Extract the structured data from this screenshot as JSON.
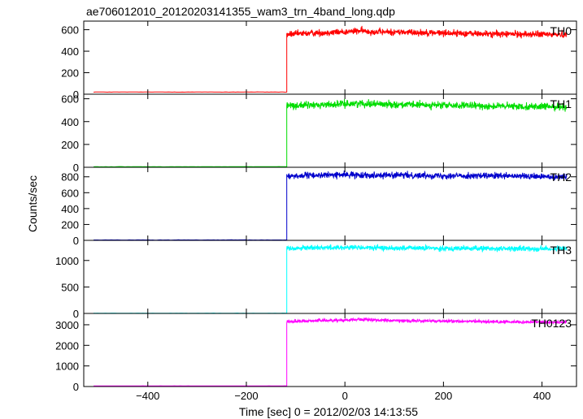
{
  "chart_data": {
    "type": "line",
    "title": "ae706012010_20120203141355_wam3_trn_4band_long.qdp",
    "xlabel": "Time [sec] 0 = 2012/02/03 14:13:55",
    "ylabel": "Counts/sec",
    "xlim": [
      -530,
      470
    ],
    "x_ticks": [
      -400,
      -200,
      0,
      200,
      400
    ],
    "x_tick_labels": [
      "−400",
      "−200",
      "0",
      "200",
      "400"
    ],
    "x_data_range": [
      -510,
      450
    ],
    "onset_time": -118,
    "grid": false,
    "panels": [
      {
        "label": "TH0",
        "color": "#ff0000",
        "ylim": [
          0,
          680
        ],
        "y_ticks": [
          0,
          200,
          400,
          600
        ],
        "y_tick_labels": [
          "0",
          "200",
          "400",
          "600"
        ],
        "baseline": 20,
        "plateau": [
          [
            -118,
            555
          ],
          [
            -60,
            570
          ],
          [
            0,
            580
          ],
          [
            30,
            590
          ],
          [
            60,
            580
          ],
          [
            150,
            575
          ],
          [
            300,
            560
          ],
          [
            450,
            555
          ]
        ],
        "noise": 22
      },
      {
        "label": "TH1",
        "color": "#00dd00",
        "ylim": [
          0,
          640
        ],
        "y_ticks": [
          0,
          200,
          400,
          600
        ],
        "y_tick_labels": [
          "0",
          "200",
          "400",
          "600"
        ],
        "baseline": 5,
        "plateau": [
          [
            -118,
            540
          ],
          [
            -60,
            545
          ],
          [
            0,
            555
          ],
          [
            30,
            560
          ],
          [
            100,
            550
          ],
          [
            300,
            535
          ],
          [
            450,
            530
          ]
        ],
        "noise": 22
      },
      {
        "label": "TH2",
        "color": "#0000cc",
        "ylim": [
          0,
          920
        ],
        "y_ticks": [
          0,
          200,
          400,
          600,
          800
        ],
        "y_tick_labels": [
          "0",
          "200",
          "400",
          "600",
          "800"
        ],
        "baseline": 5,
        "plateau": [
          [
            -118,
            810
          ],
          [
            -60,
            820
          ],
          [
            0,
            825
          ],
          [
            100,
            820
          ],
          [
            300,
            810
          ],
          [
            450,
            800
          ]
        ],
        "noise": 28
      },
      {
        "label": "TH3",
        "color": "#00ffff",
        "ylim": [
          0,
          1380
        ],
        "y_ticks": [
          0,
          500,
          1000
        ],
        "y_tick_labels": [
          "0",
          "500",
          "1000"
        ],
        "baseline": 5,
        "plateau": [
          [
            -118,
            1230
          ],
          [
            -60,
            1245
          ],
          [
            0,
            1245
          ],
          [
            100,
            1235
          ],
          [
            300,
            1225
          ],
          [
            450,
            1220
          ]
        ],
        "noise": 35
      },
      {
        "label": "TH0123",
        "color": "#ff00ff",
        "ylim": [
          0,
          3550
        ],
        "y_ticks": [
          0,
          1000,
          2000,
          3000
        ],
        "y_tick_labels": [
          "0",
          "1000",
          "2000",
          "3000"
        ],
        "baseline": 30,
        "plateau": [
          [
            -118,
            3150
          ],
          [
            -60,
            3200
          ],
          [
            0,
            3230
          ],
          [
            30,
            3260
          ],
          [
            100,
            3200
          ],
          [
            300,
            3150
          ],
          [
            450,
            3120
          ]
        ],
        "noise": 55
      }
    ]
  }
}
